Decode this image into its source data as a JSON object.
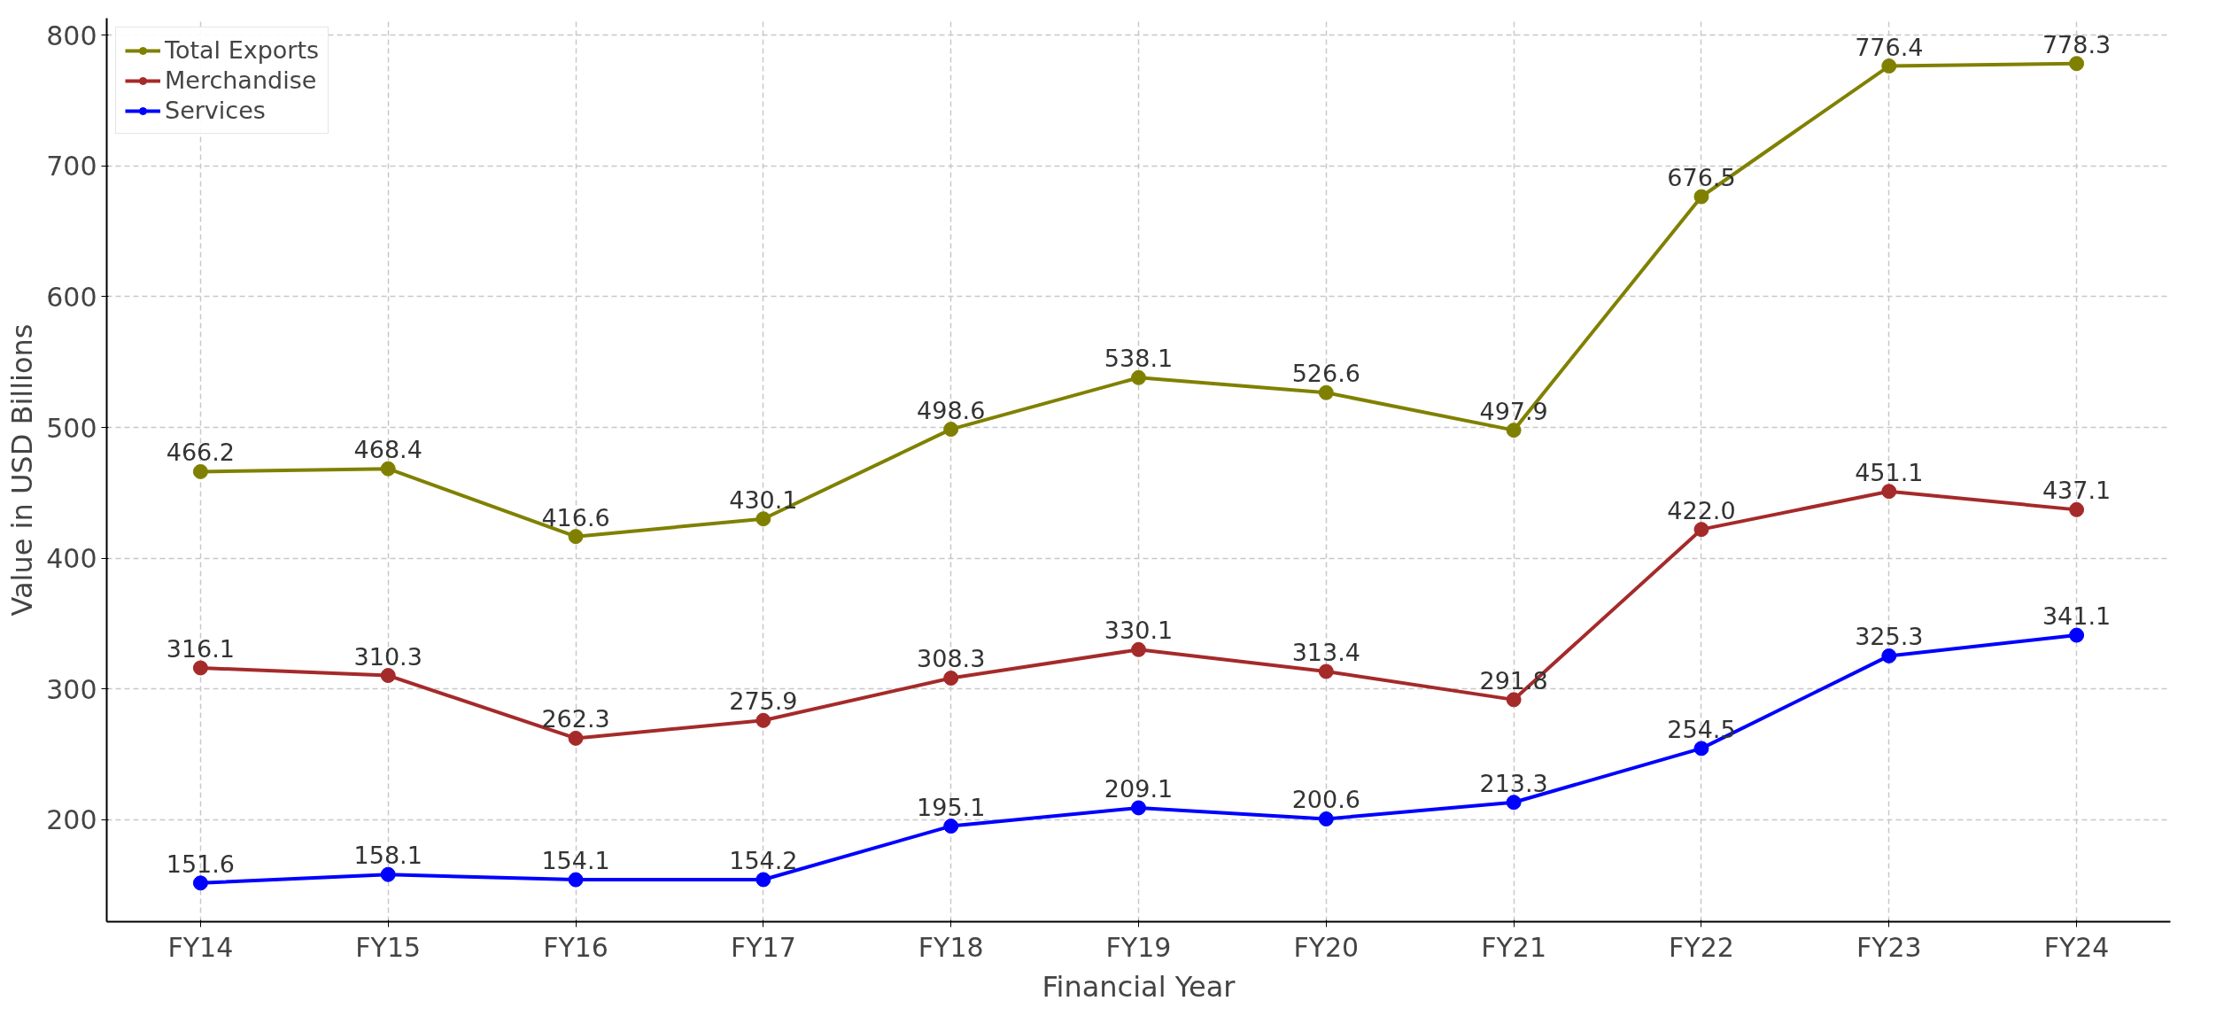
{
  "chart_data": {
    "type": "line",
    "xlabel": "Financial Year",
    "ylabel": "Value in USD Billions",
    "categories": [
      "FY14",
      "FY15",
      "FY16",
      "FY17",
      "FY18",
      "FY19",
      "FY20",
      "FY21",
      "FY22",
      "FY23",
      "FY24"
    ],
    "series": [
      {
        "name": "Total Exports",
        "color": "#808000",
        "values": [
          466.2,
          468.4,
          416.6,
          430.1,
          498.6,
          538.1,
          526.6,
          497.9,
          676.5,
          776.4,
          778.3
        ]
      },
      {
        "name": "Merchandise",
        "color": "#a52a2a",
        "values": [
          316.1,
          310.3,
          262.3,
          275.9,
          308.3,
          330.1,
          313.4,
          291.8,
          422.0,
          451.1,
          437.1
        ],
        "value_labels": [
          "316.1",
          "310.3",
          "262.3",
          "275.9",
          "308.3",
          "330.1",
          "313.4",
          "291.8",
          "422.0",
          "451.1",
          "437.1"
        ]
      },
      {
        "name": "Services",
        "color": "#0000ff",
        "values": [
          151.6,
          158.1,
          154.1,
          154.2,
          195.1,
          209.1,
          200.6,
          213.3,
          254.5,
          325.3,
          341.1
        ]
      }
    ],
    "ylim": [
      122,
      813
    ],
    "yticks": [
      200,
      300,
      400,
      500,
      600,
      700,
      800
    ],
    "grid": true,
    "legend": "top left",
    "marker": "circle",
    "line_style": "solid",
    "data_labels": true
  }
}
